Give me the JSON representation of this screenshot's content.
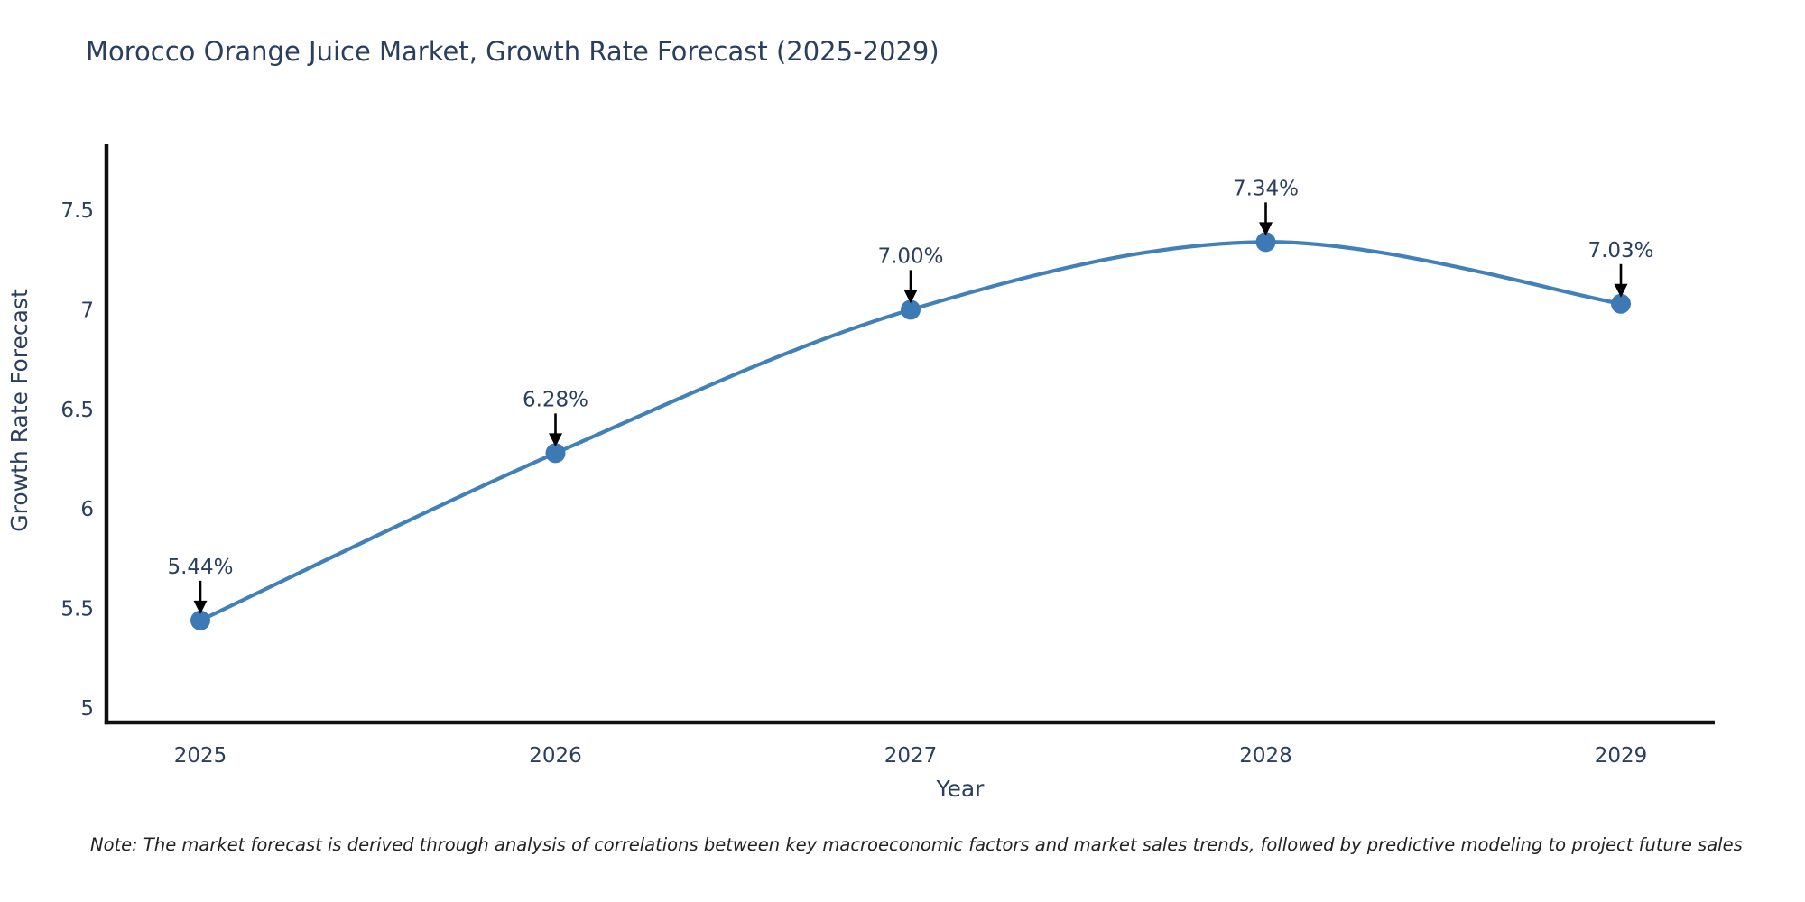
{
  "title": "Morocco Orange Juice Market, Growth Rate Forecast (2025-2029)",
  "footnote": "Note: The market forecast is derived through analysis of correlations between key macroeconomic factors and market sales trends, followed by predictive modeling to project future sales",
  "chart_data": {
    "type": "line",
    "title": "Morocco Orange Juice Market, Growth Rate Forecast (2025-2029)",
    "x": [
      2025,
      2026,
      2027,
      2028,
      2029
    ],
    "series": [
      {
        "name": "Growth Rate Forecast",
        "values": [
          5.44,
          6.28,
          7.0,
          7.34,
          7.03
        ],
        "point_labels": [
          "5.44%",
          "6.28%",
          "7.00%",
          "7.34%",
          "7.03%"
        ]
      }
    ],
    "xlabel": "Year",
    "ylabel": "Growth Rate Forecast",
    "ylim": [
      5,
      7.5
    ],
    "yticks": [
      5,
      5.5,
      6,
      6.5,
      7,
      7.5
    ],
    "line_shape": "spline",
    "grid": false,
    "legend": "none",
    "annotations_have_arrows": true,
    "colors": {
      "line": "#4181b8",
      "marker": "#3d7ab5",
      "axis": "#111111",
      "text": "#2a3f5f",
      "annotation": "#2a3f5f",
      "arrow": "#000000"
    }
  }
}
